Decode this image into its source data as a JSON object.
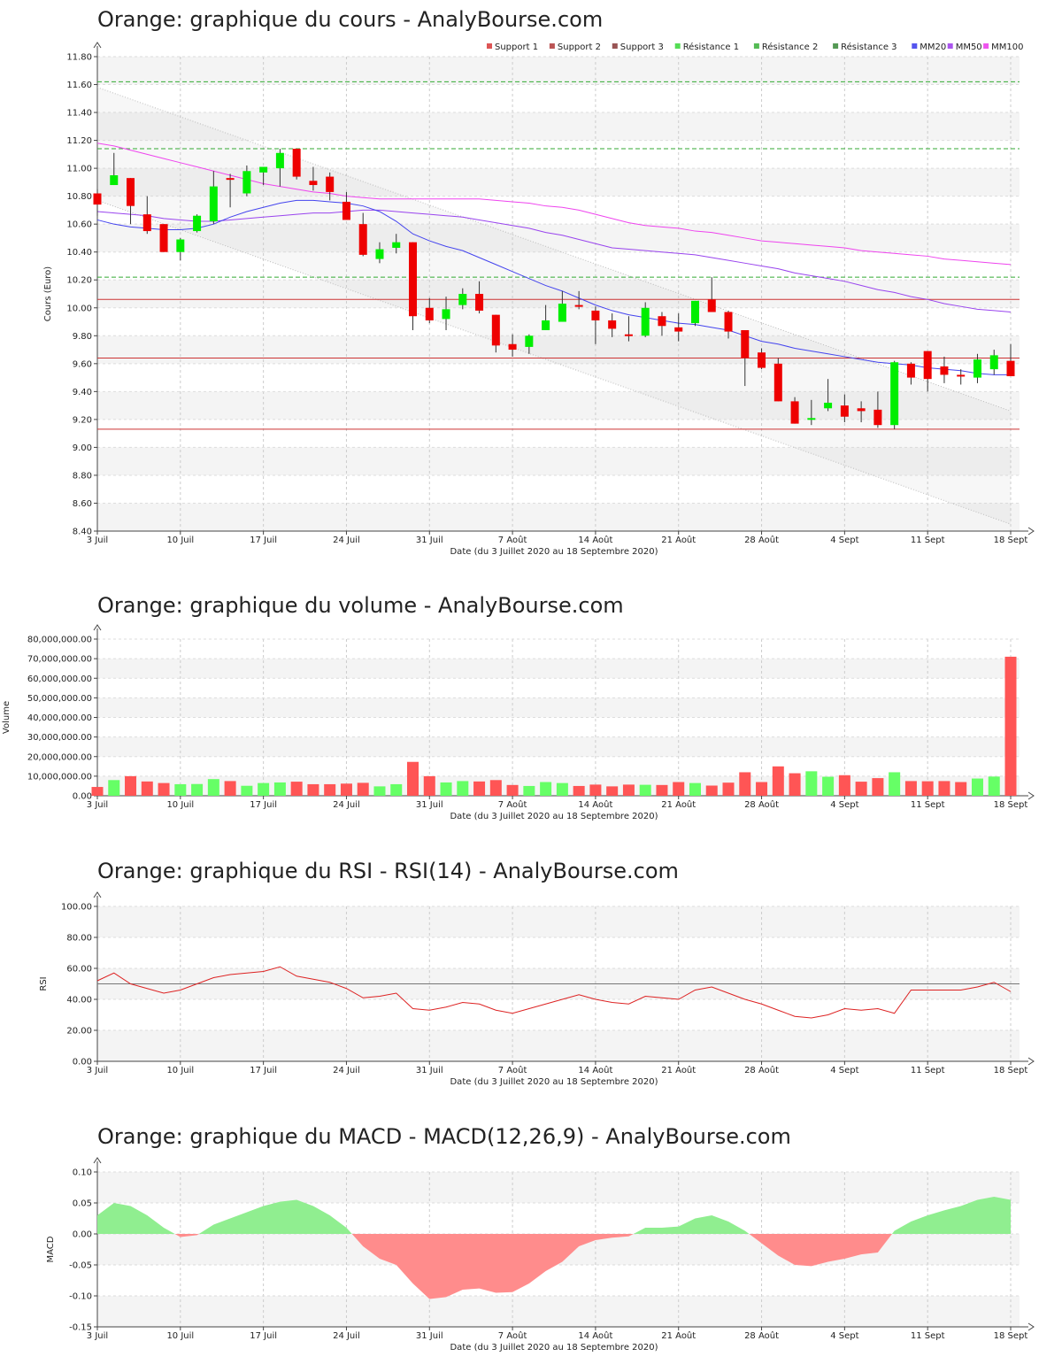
{
  "dates": [
    "2020-07-03",
    "2020-07-06",
    "2020-07-07",
    "2020-07-08",
    "2020-07-09",
    "2020-07-10",
    "2020-07-13",
    "2020-07-14",
    "2020-07-15",
    "2020-07-16",
    "2020-07-17",
    "2020-07-20",
    "2020-07-21",
    "2020-07-22",
    "2020-07-23",
    "2020-07-24",
    "2020-07-27",
    "2020-07-28",
    "2020-07-29",
    "2020-07-30",
    "2020-07-31",
    "2020-08-03",
    "2020-08-04",
    "2020-08-05",
    "2020-08-06",
    "2020-08-07",
    "2020-08-10",
    "2020-08-11",
    "2020-08-12",
    "2020-08-13",
    "2020-08-14",
    "2020-08-17",
    "2020-08-18",
    "2020-08-19",
    "2020-08-20",
    "2020-08-21",
    "2020-08-24",
    "2020-08-25",
    "2020-08-26",
    "2020-08-27",
    "2020-08-28",
    "2020-08-31",
    "2020-09-01",
    "2020-09-02",
    "2020-09-03",
    "2020-09-04",
    "2020-09-07",
    "2020-09-08",
    "2020-09-09",
    "2020-09-10",
    "2020-09-11",
    "2020-09-14",
    "2020-09-15",
    "2020-09-16",
    "2020-09-17",
    "2020-09-18"
  ],
  "x_ticks": [
    {
      "label": "3 Juil",
      "index": 0
    },
    {
      "label": "10 Juil",
      "index": 5
    },
    {
      "label": "17 Juil",
      "index": 10
    },
    {
      "label": "24 Juil",
      "index": 15
    },
    {
      "label": "31 Juil",
      "index": 20
    },
    {
      "label": "7 Août",
      "index": 25
    },
    {
      "label": "14 Août",
      "index": 30
    },
    {
      "label": "21 Août",
      "index": 35
    },
    {
      "label": "28 Août",
      "index": 40
    },
    {
      "label": "4 Sept",
      "index": 45
    },
    {
      "label": "11 Sept",
      "index": 50
    },
    {
      "label": "18 Sept",
      "index": 55
    }
  ],
  "colors": {
    "up": "#00ee00",
    "down": "#ee0000",
    "vol_up": "#66ff66",
    "vol_down": "#ff5555",
    "support": "#cc3333",
    "resistance": "#33aa33",
    "mm20": "#4444ee",
    "mm50": "#9944ee",
    "mm100": "#ee44ee",
    "macd_pos": "#90ee90",
    "macd_neg": "#ff8c8c",
    "rsi": "#dd2222"
  },
  "chart_data": [
    {
      "id": "price",
      "type": "candlestick",
      "title": "Orange: graphique du cours - AnalyBourse.com",
      "xlabel": "Date (du 3 Juillet 2020 au 18 Septembre 2020)",
      "ylabel": "Cours (Euro)",
      "ylim": [
        8.4,
        11.8
      ],
      "yticks": [
        "8.40",
        "8.60",
        "8.80",
        "9.00",
        "9.20",
        "9.40",
        "9.60",
        "9.80",
        "10.00",
        "10.20",
        "10.40",
        "10.60",
        "10.80",
        "11.00",
        "11.20",
        "11.40",
        "11.60",
        "11.80"
      ],
      "grid": true,
      "legend_position": "top-right",
      "legend": [
        {
          "label": "Support 1",
          "color": "#dd5555"
        },
        {
          "label": "Support 2",
          "color": "#bb5555"
        },
        {
          "label": "Support 3",
          "color": "#995555"
        },
        {
          "label": "Résistance 1",
          "color": "#55dd55"
        },
        {
          "label": "Résistance 2",
          "color": "#55bb55"
        },
        {
          "label": "Résistance 3",
          "color": "#559955"
        },
        {
          "label": "MM20",
          "color": "#5555ee"
        },
        {
          "label": "MM50",
          "color": "#aa55ee"
        },
        {
          "label": "MM100",
          "color": "#ee55ee"
        }
      ],
      "ohlc": [
        [
          10.82,
          10.85,
          10.66,
          10.74
        ],
        [
          10.88,
          11.11,
          10.88,
          10.95
        ],
        [
          10.93,
          10.93,
          10.6,
          10.73
        ],
        [
          10.67,
          10.8,
          10.53,
          10.55
        ],
        [
          10.6,
          10.6,
          10.4,
          10.4
        ],
        [
          10.4,
          10.5,
          10.34,
          10.49
        ],
        [
          10.55,
          10.67,
          10.54,
          10.66
        ],
        [
          10.62,
          10.98,
          10.6,
          10.87
        ],
        [
          10.93,
          10.96,
          10.72,
          10.92
        ],
        [
          10.82,
          11.02,
          10.8,
          10.98
        ],
        [
          10.97,
          11.01,
          10.88,
          11.01
        ],
        [
          11.0,
          11.14,
          10.87,
          11.11
        ],
        [
          11.14,
          11.14,
          10.92,
          10.94
        ],
        [
          10.91,
          11.01,
          10.84,
          10.88
        ],
        [
          10.94,
          10.97,
          10.77,
          10.83
        ],
        [
          10.76,
          10.83,
          10.63,
          10.63
        ],
        [
          10.6,
          10.68,
          10.37,
          10.38
        ],
        [
          10.35,
          10.47,
          10.32,
          10.42
        ],
        [
          10.43,
          10.53,
          10.39,
          10.47
        ],
        [
          10.47,
          10.47,
          9.84,
          9.94
        ],
        [
          10.0,
          10.07,
          9.89,
          9.91
        ],
        [
          9.92,
          10.08,
          9.84,
          9.99
        ],
        [
          10.02,
          10.14,
          9.99,
          10.1
        ],
        [
          10.1,
          10.19,
          9.96,
          9.98
        ],
        [
          9.95,
          9.95,
          9.68,
          9.73
        ],
        [
          9.74,
          9.81,
          9.65,
          9.7
        ],
        [
          9.72,
          9.81,
          9.67,
          9.8
        ],
        [
          9.84,
          10.02,
          9.84,
          9.91
        ],
        [
          9.9,
          10.12,
          9.9,
          10.03
        ],
        [
          10.02,
          10.12,
          9.99,
          10.01
        ],
        [
          9.98,
          10.01,
          9.74,
          9.91
        ],
        [
          9.91,
          9.96,
          9.79,
          9.85
        ],
        [
          9.81,
          9.94,
          9.76,
          9.8
        ],
        [
          9.8,
          10.04,
          9.79,
          10.0
        ],
        [
          9.94,
          9.97,
          9.8,
          9.87
        ],
        [
          9.86,
          9.96,
          9.76,
          9.83
        ],
        [
          9.89,
          10.05,
          9.87,
          10.05
        ],
        [
          10.06,
          10.22,
          9.97,
          9.97
        ],
        [
          9.97,
          9.98,
          9.78,
          9.83
        ],
        [
          9.84,
          9.84,
          9.44,
          9.64
        ],
        [
          9.68,
          9.71,
          9.56,
          9.57
        ],
        [
          9.6,
          9.64,
          9.33,
          9.33
        ],
        [
          9.33,
          9.36,
          9.17,
          9.17
        ],
        [
          9.21,
          9.34,
          9.16,
          9.21
        ],
        [
          9.28,
          9.49,
          9.26,
          9.32
        ],
        [
          9.3,
          9.38,
          9.18,
          9.22
        ],
        [
          9.28,
          9.33,
          9.18,
          9.26
        ],
        [
          9.27,
          9.4,
          9.14,
          9.16
        ],
        [
          9.16,
          9.62,
          9.13,
          9.61
        ],
        [
          9.6,
          9.61,
          9.45,
          9.5
        ],
        [
          9.69,
          9.69,
          9.4,
          9.49
        ],
        [
          9.58,
          9.65,
          9.46,
          9.52
        ],
        [
          9.52,
          9.56,
          9.45,
          9.51
        ],
        [
          9.5,
          9.67,
          9.46,
          9.63
        ],
        [
          9.56,
          9.7,
          9.52,
          9.66
        ],
        [
          9.62,
          9.74,
          9.51,
          9.51
        ]
      ],
      "support": [
        10.06,
        9.64,
        9.13
      ],
      "resistance": [
        11.62,
        11.14,
        10.22
      ],
      "trend_channel": {
        "upper": [
          11.58,
          9.26
        ],
        "lower": [
          10.77,
          8.45
        ]
      },
      "mm20": [
        10.63,
        10.6,
        10.58,
        10.57,
        10.56,
        10.56,
        10.57,
        10.6,
        10.65,
        10.69,
        10.72,
        10.75,
        10.77,
        10.77,
        10.76,
        10.75,
        10.73,
        10.69,
        10.62,
        10.53,
        10.48,
        10.44,
        10.41,
        10.36,
        10.31,
        10.26,
        10.21,
        10.16,
        10.12,
        10.07,
        10.02,
        9.98,
        9.95,
        9.93,
        9.91,
        9.89,
        9.88,
        9.86,
        9.84,
        9.8,
        9.76,
        9.74,
        9.71,
        9.69,
        9.67,
        9.65,
        9.63,
        9.61,
        9.6,
        9.59,
        9.57,
        9.56,
        9.55,
        9.53,
        9.52,
        9.52
      ],
      "mm50": [
        10.69,
        10.68,
        10.67,
        10.66,
        10.64,
        10.63,
        10.62,
        10.62,
        10.63,
        10.64,
        10.65,
        10.66,
        10.67,
        10.68,
        10.68,
        10.69,
        10.7,
        10.7,
        10.69,
        10.68,
        10.67,
        10.66,
        10.65,
        10.63,
        10.61,
        10.59,
        10.57,
        10.54,
        10.52,
        10.49,
        10.46,
        10.43,
        10.42,
        10.41,
        10.4,
        10.39,
        10.38,
        10.36,
        10.34,
        10.32,
        10.3,
        10.28,
        10.25,
        10.23,
        10.21,
        10.19,
        10.16,
        10.13,
        10.11,
        10.08,
        10.06,
        10.03,
        10.01,
        9.99,
        9.98,
        9.97
      ],
      "mm100": [
        11.18,
        11.16,
        11.13,
        11.1,
        11.07,
        11.04,
        11.01,
        10.98,
        10.95,
        10.92,
        10.89,
        10.87,
        10.85,
        10.83,
        10.82,
        10.8,
        10.79,
        10.78,
        10.78,
        10.78,
        10.78,
        10.78,
        10.78,
        10.78,
        10.77,
        10.76,
        10.75,
        10.73,
        10.72,
        10.7,
        10.67,
        10.64,
        10.61,
        10.59,
        10.58,
        10.57,
        10.55,
        10.54,
        10.52,
        10.5,
        10.48,
        10.47,
        10.46,
        10.45,
        10.44,
        10.43,
        10.41,
        10.4,
        10.39,
        10.38,
        10.37,
        10.35,
        10.34,
        10.33,
        10.32,
        10.31
      ]
    },
    {
      "id": "volume",
      "type": "bar",
      "title": "Orange: graphique du volume - AnalyBourse.com",
      "xlabel": "Date (du 3 Juillet 2020 au 18 Septembre 2020)",
      "ylabel": "Volume",
      "ylim": [
        0,
        80000000
      ],
      "yticks": [
        "0.00",
        "10,000,000.00",
        "20,000,000.00",
        "30,000,000.00",
        "40,000,000.00",
        "50,000,000.00",
        "60,000,000.00",
        "70,000,000.00",
        "80,000,000.00"
      ],
      "grid": true,
      "values": [
        4500000,
        8000000,
        10000000,
        7300000,
        6500000,
        5900000,
        6000000,
        8500000,
        7500000,
        5100000,
        6500000,
        6800000,
        7200000,
        5900000,
        5900000,
        6200000,
        6600000,
        4800000,
        5900000,
        17300000,
        10000000,
        6800000,
        7500000,
        7300000,
        8000000,
        5500000,
        5000000,
        7000000,
        6500000,
        5000000,
        5700000,
        4800000,
        5700000,
        5600000,
        5500000,
        7000000,
        6500000,
        5200000,
        6700000,
        12000000,
        7000000,
        15000000,
        11500000,
        12500000,
        9700000,
        10500000,
        7200000,
        9000000,
        12000000,
        7500000,
        7400000,
        7500000,
        7000000,
        8800000,
        9800000,
        71000000
      ]
    },
    {
      "id": "rsi",
      "type": "line",
      "title": "Orange: graphique du RSI - RSI(14) - AnalyBourse.com",
      "xlabel": "Date (du 3 Juillet 2020 au 18 Septembre 2020)",
      "ylabel": "RSI",
      "ylim": [
        0,
        100
      ],
      "yticks": [
        "0.00",
        "20.00",
        "40.00",
        "60.00",
        "80.00",
        "100.00"
      ],
      "grid": true,
      "reference_line": 50,
      "values": [
        52,
        57,
        50,
        47,
        44,
        46,
        50,
        54,
        56,
        57,
        58,
        61,
        55,
        53,
        51,
        47,
        41,
        42,
        44,
        34,
        33,
        35,
        38,
        37,
        33,
        31,
        34,
        37,
        40,
        43,
        40,
        38,
        37,
        42,
        41,
        40,
        46,
        48,
        44,
        40,
        37,
        33,
        29,
        28,
        30,
        34,
        33,
        34,
        31,
        46,
        46,
        46,
        46,
        48,
        51,
        45
      ]
    },
    {
      "id": "macd",
      "type": "area",
      "title": "Orange: graphique du MACD - MACD(12,26,9) - AnalyBourse.com",
      "xlabel": "Date (du 3 Juillet 2020 au 18 Septembre 2020)",
      "ylabel": "MACD",
      "ylim": [
        -0.15,
        0.1
      ],
      "yticks": [
        "-0.15",
        "-0.10",
        "-0.05",
        "0.00",
        "0.05",
        "0.10"
      ],
      "grid": true,
      "values": [
        0.03,
        0.05,
        0.045,
        0.03,
        0.01,
        -0.005,
        -0.002,
        0.015,
        0.025,
        0.035,
        0.045,
        0.052,
        0.055,
        0.045,
        0.03,
        0.01,
        -0.02,
        -0.04,
        -0.05,
        -0.08,
        -0.105,
        -0.102,
        -0.09,
        -0.088,
        -0.095,
        -0.094,
        -0.08,
        -0.06,
        -0.045,
        -0.02,
        -0.01,
        -0.006,
        -0.004,
        0.01,
        0.01,
        0.012,
        0.025,
        0.03,
        0.02,
        0.005,
        -0.015,
        -0.035,
        -0.05,
        -0.052,
        -0.045,
        -0.04,
        -0.033,
        -0.03,
        0.005,
        0.02,
        0.03,
        0.038,
        0.045,
        0.055,
        0.06,
        0.055
      ]
    }
  ]
}
